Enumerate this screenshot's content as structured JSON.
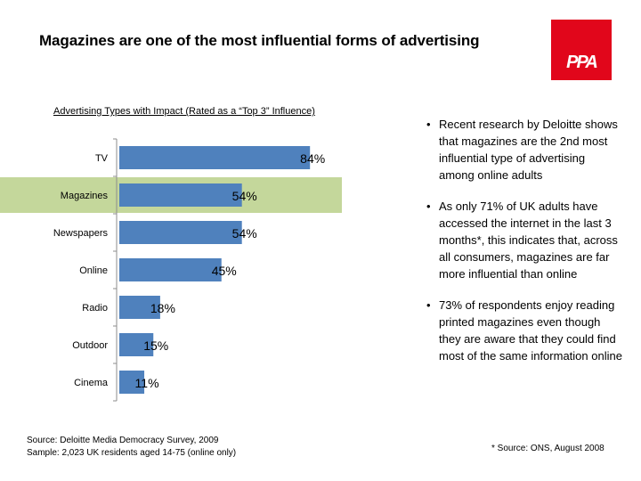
{
  "slide": {
    "title": "Magazines are one of the most influential forms of advertising",
    "logo_text": "PPA",
    "bullets": [
      "Recent research by Deloitte shows that magazines are the 2nd most influential type of advertising among online adults",
      "As only 71% of UK adults have accessed the internet in the last 3 months*, this indicates that, across all consumers, magazines are far more influential than online",
      "73% of respondents enjoy reading printed magazines even though they are aware that they could find most of the same information online"
    ],
    "source_line1": "Source: Deloitte Media Democracy Survey, 2009",
    "source_line2": "Sample: 2,023 UK residents aged 14-75 (online only)",
    "footnote": "* Source: ONS, August 2008"
  },
  "colors": {
    "bar": "#4f81bd",
    "highlight": "#c4d79b",
    "logo": "#e1061b"
  },
  "chart_data": {
    "type": "bar",
    "orientation": "horizontal",
    "title": "Advertising Types with Impact (Rated as a “Top 3” Influence)",
    "categories": [
      "TV",
      "Magazines",
      "Newspapers",
      "Online",
      "Radio",
      "Outdoor",
      "Cinema"
    ],
    "values": [
      84,
      54,
      54,
      45,
      18,
      15,
      11
    ],
    "labels": [
      "84%",
      "54%",
      "54%",
      "45%",
      "18%",
      "15%",
      "11%"
    ],
    "highlighted_category": "Magazines",
    "unit": "%",
    "grid": false,
    "legend": "none"
  }
}
